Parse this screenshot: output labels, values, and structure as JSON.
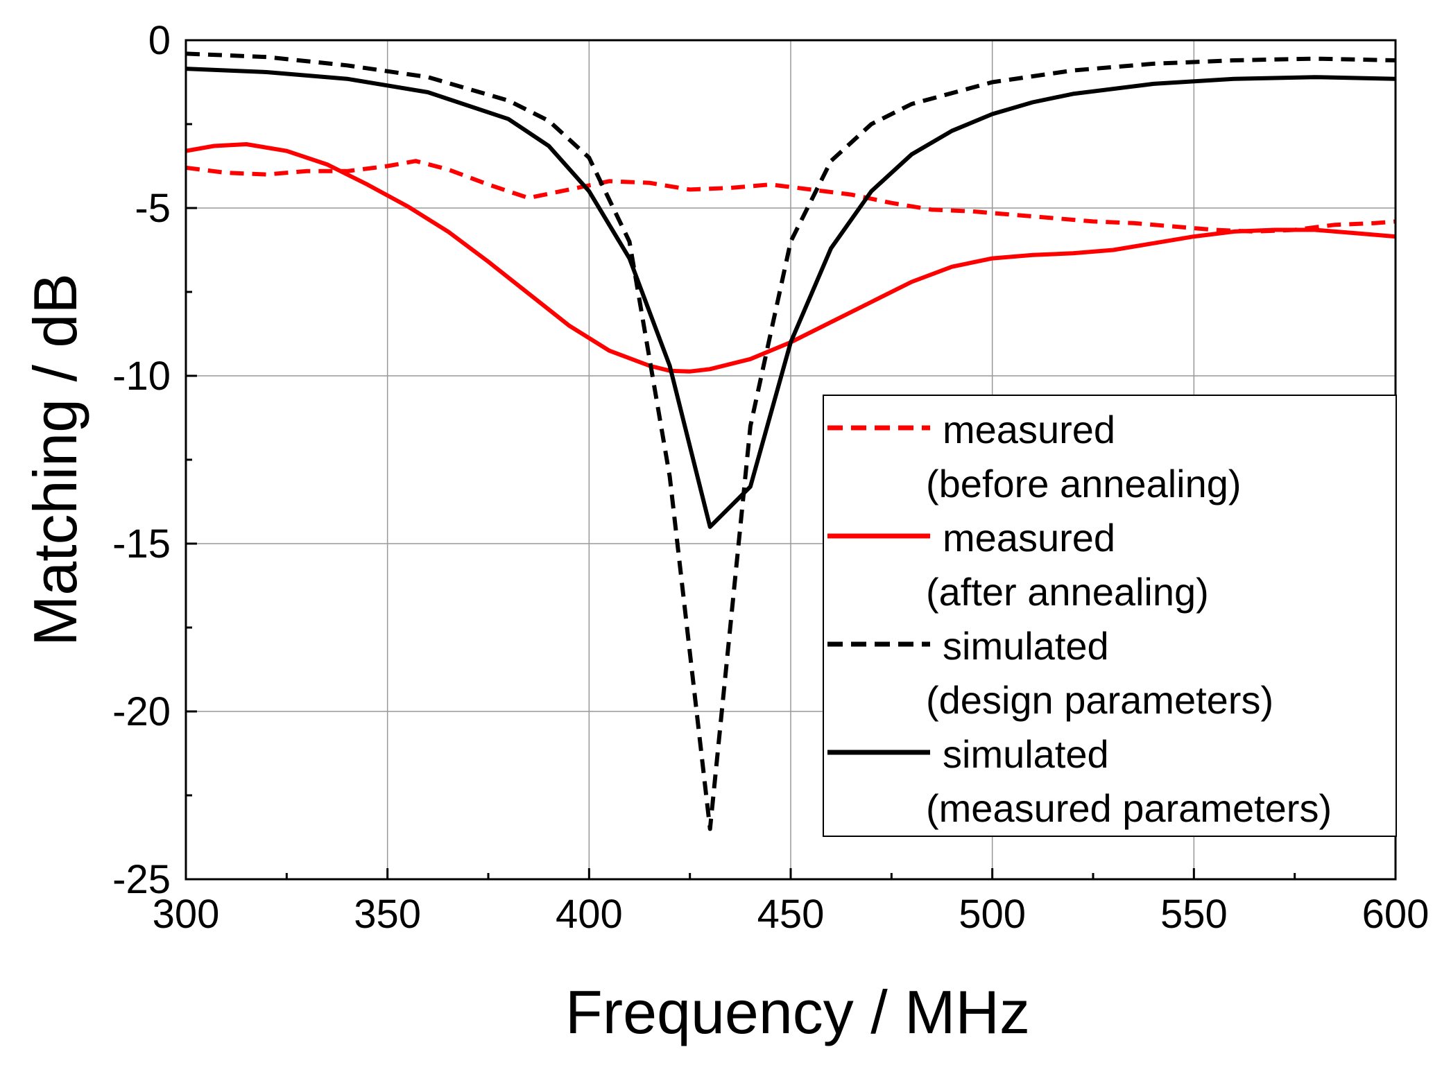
{
  "chart_data": {
    "type": "line",
    "title": "",
    "xlabel": "Frequency / MHz",
    "ylabel": "Matching / dB",
    "xlim": [
      300,
      600
    ],
    "ylim": [
      -25,
      0
    ],
    "xticks": [
      300,
      350,
      400,
      450,
      500,
      550,
      600
    ],
    "yticks": [
      0,
      -5,
      -10,
      -15,
      -20,
      -25
    ],
    "xtick_labels": [
      "300",
      "350",
      "400",
      "450",
      "500",
      "550",
      "600"
    ],
    "ytick_labels": [
      "0",
      "-5",
      "-10",
      "-15",
      "-20",
      "-25"
    ],
    "grid": true,
    "legend_position": "right",
    "series": [
      {
        "name": "measured (before annealing)",
        "legend_line1": "measured",
        "legend_line2": "(before annealing)",
        "color": "#ff0000",
        "dash": "dashed",
        "x": [
          300,
          310,
          320,
          330,
          340,
          350,
          357,
          365,
          375,
          385,
          395,
          405,
          415,
          425,
          435,
          445,
          455,
          465,
          475,
          485,
          495,
          505,
          515,
          525,
          535,
          545,
          555,
          565,
          575,
          585,
          595,
          600
        ],
        "values": [
          -3.8,
          -3.95,
          -4.0,
          -3.9,
          -3.9,
          -3.75,
          -3.6,
          -3.85,
          -4.3,
          -4.7,
          -4.45,
          -4.2,
          -4.25,
          -4.45,
          -4.4,
          -4.3,
          -4.45,
          -4.6,
          -4.85,
          -5.05,
          -5.1,
          -5.2,
          -5.3,
          -5.4,
          -5.45,
          -5.55,
          -5.65,
          -5.7,
          -5.65,
          -5.5,
          -5.45,
          -5.4
        ]
      },
      {
        "name": "measured (after annealing)",
        "legend_line1": "measured",
        "legend_line2": "(after annealing)",
        "color": "#ff0000",
        "dash": "solid",
        "x": [
          300,
          307,
          315,
          325,
          335,
          345,
          355,
          365,
          375,
          385,
          395,
          405,
          415,
          420,
          425,
          430,
          440,
          450,
          460,
          470,
          480,
          490,
          500,
          510,
          520,
          530,
          540,
          550,
          560,
          570,
          580,
          590,
          600
        ],
        "values": [
          -3.3,
          -3.15,
          -3.1,
          -3.3,
          -3.7,
          -4.3,
          -4.95,
          -5.7,
          -6.6,
          -7.55,
          -8.5,
          -9.25,
          -9.7,
          -9.85,
          -9.87,
          -9.8,
          -9.5,
          -9.0,
          -8.4,
          -7.8,
          -7.2,
          -6.75,
          -6.5,
          -6.4,
          -6.35,
          -6.25,
          -6.05,
          -5.85,
          -5.7,
          -5.65,
          -5.65,
          -5.75,
          -5.85
        ]
      },
      {
        "name": "simulated (design parameters)",
        "legend_line1": "simulated",
        "legend_line2": "(design parameters)",
        "color": "#000000",
        "dash": "dashed",
        "x": [
          300,
          320,
          340,
          360,
          380,
          390,
          400,
          410,
          420,
          430,
          440,
          450,
          460,
          470,
          480,
          500,
          520,
          540,
          560,
          580,
          600
        ],
        "values": [
          -0.4,
          -0.5,
          -0.75,
          -1.1,
          -1.8,
          -2.4,
          -3.5,
          -6.0,
          -13.0,
          -23.5,
          -11.5,
          -6.0,
          -3.6,
          -2.5,
          -1.9,
          -1.25,
          -0.9,
          -0.7,
          -0.6,
          -0.55,
          -0.6
        ]
      },
      {
        "name": "simulated (measured parameters)",
        "legend_line1": "simulated",
        "legend_line2": "(measured parameters)",
        "color": "#000000",
        "dash": "solid",
        "x": [
          300,
          320,
          340,
          360,
          380,
          390,
          400,
          410,
          420,
          430,
          440,
          450,
          460,
          470,
          480,
          490,
          500,
          510,
          520,
          540,
          560,
          580,
          600
        ],
        "values": [
          -0.85,
          -0.95,
          -1.15,
          -1.55,
          -2.35,
          -3.15,
          -4.5,
          -6.5,
          -9.7,
          -14.5,
          -13.3,
          -9.0,
          -6.2,
          -4.5,
          -3.4,
          -2.7,
          -2.2,
          -1.85,
          -1.6,
          -1.3,
          -1.15,
          -1.1,
          -1.15
        ]
      }
    ]
  }
}
